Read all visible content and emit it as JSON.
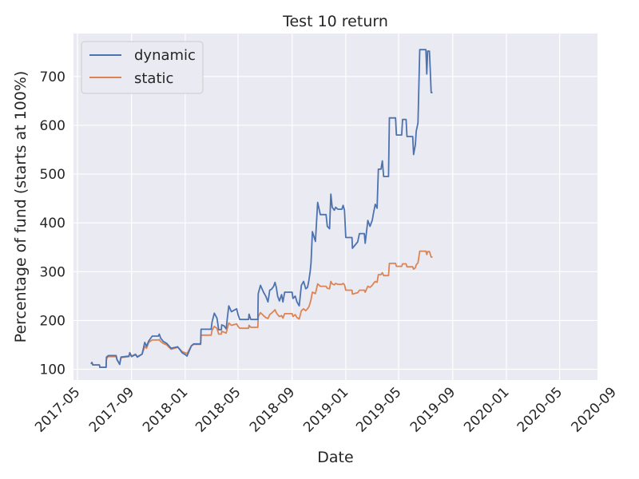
{
  "chart_data": {
    "type": "line",
    "title": "Test 10 return",
    "xlabel": "Date",
    "ylabel": "Percentage of fund (starts at 100%)",
    "xlim": [
      "2017-04-22",
      "2020-07-26"
    ],
    "ylim": [
      78,
      788
    ],
    "yticks": [
      100,
      200,
      300,
      400,
      500,
      600,
      700
    ],
    "xticks": [
      "2017-05",
      "2017-09",
      "2018-01",
      "2018-05",
      "2018-09",
      "2019-01",
      "2019-05",
      "2019-09",
      "2020-01",
      "2020-05",
      "2020-09"
    ],
    "xticks_dates": [
      "2017-05-01",
      "2017-09-01",
      "2018-01-01",
      "2018-05-01",
      "2018-09-01",
      "2019-01-01",
      "2019-05-01",
      "2019-09-01",
      "2020-01-01",
      "2020-05-01",
      "2020-09-01"
    ],
    "grid": true,
    "legend": "top-left",
    "colors": {
      "background": "#eaeaf2",
      "grid": "#ffffff",
      "dynamic": "#4c72b0",
      "static": "#dd8452"
    },
    "series": [
      {
        "name": "dynamic",
        "points": [
          [
            "2017-06-01",
            111
          ],
          [
            "2017-06-03",
            114
          ],
          [
            "2017-06-05",
            109
          ],
          [
            "2017-06-20",
            109
          ],
          [
            "2017-06-21",
            104
          ],
          [
            "2017-07-05",
            104
          ],
          [
            "2017-07-06",
            125
          ],
          [
            "2017-07-10",
            128
          ],
          [
            "2017-07-28",
            128
          ],
          [
            "2017-07-30",
            120
          ],
          [
            "2017-08-05",
            110
          ],
          [
            "2017-08-08",
            125
          ],
          [
            "2017-08-26",
            127
          ],
          [
            "2017-08-28",
            134
          ],
          [
            "2017-09-01",
            126
          ],
          [
            "2017-09-10",
            130
          ],
          [
            "2017-09-14",
            125
          ],
          [
            "2017-09-25",
            131
          ],
          [
            "2017-10-01",
            155
          ],
          [
            "2017-10-05",
            147
          ],
          [
            "2017-10-10",
            158
          ],
          [
            "2017-10-18",
            168
          ],
          [
            "2017-11-01",
            168
          ],
          [
            "2017-11-03",
            172
          ],
          [
            "2017-11-06",
            164
          ],
          [
            "2017-11-12",
            157
          ],
          [
            "2017-11-20",
            153
          ],
          [
            "2017-11-25",
            148
          ],
          [
            "2017-11-30",
            143
          ],
          [
            "2017-12-15",
            146
          ],
          [
            "2017-12-20",
            140
          ],
          [
            "2017-12-25",
            134
          ],
          [
            "2018-01-01",
            130
          ],
          [
            "2018-01-05",
            127
          ],
          [
            "2018-01-15",
            148
          ],
          [
            "2018-01-20",
            152
          ],
          [
            "2018-02-05",
            152
          ],
          [
            "2018-02-06",
            182
          ],
          [
            "2018-03-01",
            182
          ],
          [
            "2018-03-03",
            197
          ],
          [
            "2018-03-08",
            215
          ],
          [
            "2018-03-14",
            205
          ],
          [
            "2018-03-18",
            181
          ],
          [
            "2018-03-24",
            181
          ],
          [
            "2018-03-25",
            191
          ],
          [
            "2018-03-30",
            189
          ],
          [
            "2018-04-04",
            183
          ],
          [
            "2018-04-10",
            230
          ],
          [
            "2018-04-16",
            218
          ],
          [
            "2018-04-28",
            224
          ],
          [
            "2018-05-01",
            212
          ],
          [
            "2018-05-05",
            202
          ],
          [
            "2018-05-25",
            202
          ],
          [
            "2018-05-26",
            213
          ],
          [
            "2018-05-30",
            202
          ],
          [
            "2018-06-15",
            202
          ],
          [
            "2018-06-16",
            255
          ],
          [
            "2018-06-21",
            272
          ],
          [
            "2018-06-28",
            258
          ],
          [
            "2018-07-03",
            250
          ],
          [
            "2018-07-08",
            238
          ],
          [
            "2018-07-12",
            262
          ],
          [
            "2018-07-16",
            264
          ],
          [
            "2018-07-21",
            270
          ],
          [
            "2018-07-24",
            278
          ],
          [
            "2018-07-27",
            268
          ],
          [
            "2018-07-30",
            250
          ],
          [
            "2018-08-03",
            240
          ],
          [
            "2018-08-08",
            253
          ],
          [
            "2018-08-11",
            238
          ],
          [
            "2018-08-15",
            258
          ],
          [
            "2018-09-01",
            258
          ],
          [
            "2018-09-03",
            245
          ],
          [
            "2018-09-08",
            250
          ],
          [
            "2018-09-12",
            238
          ],
          [
            "2018-09-17",
            230
          ],
          [
            "2018-09-22",
            272
          ],
          [
            "2018-09-27",
            280
          ],
          [
            "2018-10-02",
            265
          ],
          [
            "2018-10-06",
            268
          ],
          [
            "2018-10-09",
            282
          ],
          [
            "2018-10-12",
            300
          ],
          [
            "2018-10-14",
            318
          ],
          [
            "2018-10-17",
            382
          ],
          [
            "2018-10-24",
            362
          ],
          [
            "2018-10-29",
            442
          ],
          [
            "2018-11-04",
            417
          ],
          [
            "2018-11-17",
            417
          ],
          [
            "2018-11-20",
            393
          ],
          [
            "2018-11-25",
            388
          ],
          [
            "2018-11-28",
            459
          ],
          [
            "2018-12-01",
            432
          ],
          [
            "2018-12-06",
            426
          ],
          [
            "2018-12-09",
            432
          ],
          [
            "2018-12-14",
            428
          ],
          [
            "2018-12-23",
            428
          ],
          [
            "2018-12-26",
            436
          ],
          [
            "2018-12-29",
            426
          ],
          [
            "2019-01-01",
            370
          ],
          [
            "2019-01-15",
            370
          ],
          [
            "2019-01-16",
            348
          ],
          [
            "2019-01-28",
            361
          ],
          [
            "2019-02-01",
            378
          ],
          [
            "2019-02-12",
            378
          ],
          [
            "2019-02-14",
            358
          ],
          [
            "2019-02-20",
            405
          ],
          [
            "2019-02-25",
            393
          ],
          [
            "2019-03-02",
            405
          ],
          [
            "2019-03-05",
            420
          ],
          [
            "2019-03-09",
            438
          ],
          [
            "2019-03-13",
            430
          ],
          [
            "2019-03-16",
            510
          ],
          [
            "2019-03-22",
            510
          ],
          [
            "2019-03-25",
            527
          ],
          [
            "2019-03-28",
            495
          ],
          [
            "2019-04-08",
            495
          ],
          [
            "2019-04-10",
            615
          ],
          [
            "2019-04-24",
            615
          ],
          [
            "2019-04-26",
            580
          ],
          [
            "2019-05-08",
            580
          ],
          [
            "2019-05-10",
            612
          ],
          [
            "2019-05-18",
            612
          ],
          [
            "2019-05-20",
            577
          ],
          [
            "2019-06-02",
            577
          ],
          [
            "2019-06-04",
            540
          ],
          [
            "2019-06-08",
            560
          ],
          [
            "2019-06-10",
            588
          ],
          [
            "2019-06-14",
            605
          ],
          [
            "2019-06-18",
            755
          ],
          [
            "2019-07-02",
            755
          ],
          [
            "2019-07-04",
            705
          ],
          [
            "2019-07-06",
            752
          ],
          [
            "2019-07-10",
            752
          ],
          [
            "2019-07-12",
            712
          ],
          [
            "2019-07-14",
            667
          ],
          [
            "2019-07-17",
            667
          ]
        ]
      },
      {
        "name": "static",
        "points": [
          [
            "2017-06-01",
            111
          ],
          [
            "2017-06-03",
            114
          ],
          [
            "2017-06-05",
            109
          ],
          [
            "2017-06-20",
            109
          ],
          [
            "2017-06-21",
            104
          ],
          [
            "2017-07-05",
            104
          ],
          [
            "2017-07-06",
            122
          ],
          [
            "2017-07-10",
            126
          ],
          [
            "2017-07-28",
            126
          ],
          [
            "2017-07-30",
            119
          ],
          [
            "2017-08-05",
            111
          ],
          [
            "2017-08-08",
            124
          ],
          [
            "2017-08-26",
            126
          ],
          [
            "2017-08-28",
            133
          ],
          [
            "2017-09-01",
            127
          ],
          [
            "2017-09-10",
            131
          ],
          [
            "2017-09-14",
            126
          ],
          [
            "2017-09-25",
            131
          ],
          [
            "2017-10-01",
            147
          ],
          [
            "2017-10-05",
            143
          ],
          [
            "2017-10-10",
            155
          ],
          [
            "2017-10-18",
            160
          ],
          [
            "2017-11-01",
            160
          ],
          [
            "2017-11-03",
            161
          ],
          [
            "2017-11-06",
            157
          ],
          [
            "2017-11-12",
            153
          ],
          [
            "2017-11-20",
            150
          ],
          [
            "2017-11-25",
            145
          ],
          [
            "2017-11-30",
            141
          ],
          [
            "2017-12-15",
            145
          ],
          [
            "2017-12-20",
            141
          ],
          [
            "2017-12-25",
            136
          ],
          [
            "2018-01-01",
            134
          ],
          [
            "2018-01-05",
            132
          ],
          [
            "2018-01-15",
            148
          ],
          [
            "2018-01-20",
            151
          ],
          [
            "2018-02-05",
            151
          ],
          [
            "2018-02-06",
            170
          ],
          [
            "2018-03-01",
            170
          ],
          [
            "2018-03-03",
            180
          ],
          [
            "2018-03-08",
            188
          ],
          [
            "2018-03-14",
            184
          ],
          [
            "2018-03-18",
            172
          ],
          [
            "2018-03-24",
            172
          ],
          [
            "2018-03-25",
            178
          ],
          [
            "2018-03-30",
            176
          ],
          [
            "2018-04-04",
            174
          ],
          [
            "2018-04-10",
            195
          ],
          [
            "2018-04-16",
            190
          ],
          [
            "2018-04-28",
            193
          ],
          [
            "2018-05-01",
            188
          ],
          [
            "2018-05-05",
            184
          ],
          [
            "2018-05-25",
            184
          ],
          [
            "2018-05-26",
            190
          ],
          [
            "2018-05-30",
            186
          ],
          [
            "2018-06-15",
            186
          ],
          [
            "2018-06-16",
            208
          ],
          [
            "2018-06-21",
            216
          ],
          [
            "2018-06-28",
            210
          ],
          [
            "2018-07-03",
            206
          ],
          [
            "2018-07-08",
            204
          ],
          [
            "2018-07-12",
            212
          ],
          [
            "2018-07-16",
            215
          ],
          [
            "2018-07-21",
            219
          ],
          [
            "2018-07-24",
            222
          ],
          [
            "2018-07-27",
            216
          ],
          [
            "2018-07-30",
            212
          ],
          [
            "2018-08-03",
            208
          ],
          [
            "2018-08-08",
            210
          ],
          [
            "2018-08-11",
            205
          ],
          [
            "2018-08-15",
            214
          ],
          [
            "2018-09-01",
            214
          ],
          [
            "2018-09-03",
            208
          ],
          [
            "2018-09-08",
            212
          ],
          [
            "2018-09-12",
            206
          ],
          [
            "2018-09-17",
            203
          ],
          [
            "2018-09-22",
            220
          ],
          [
            "2018-09-27",
            224
          ],
          [
            "2018-10-02",
            220
          ],
          [
            "2018-10-06",
            224
          ],
          [
            "2018-10-09",
            228
          ],
          [
            "2018-10-12",
            236
          ],
          [
            "2018-10-14",
            243
          ],
          [
            "2018-10-17",
            258
          ],
          [
            "2018-10-24",
            255
          ],
          [
            "2018-10-29",
            275
          ],
          [
            "2018-11-04",
            270
          ],
          [
            "2018-11-17",
            270
          ],
          [
            "2018-11-20",
            266
          ],
          [
            "2018-11-25",
            265
          ],
          [
            "2018-11-28",
            280
          ],
          [
            "2018-12-01",
            275
          ],
          [
            "2018-12-06",
            273
          ],
          [
            "2018-12-09",
            276
          ],
          [
            "2018-12-14",
            274
          ],
          [
            "2018-12-23",
            274
          ],
          [
            "2018-12-26",
            276
          ],
          [
            "2018-12-29",
            273
          ],
          [
            "2019-01-01",
            262
          ],
          [
            "2019-01-15",
            262
          ],
          [
            "2019-01-16",
            254
          ],
          [
            "2019-01-28",
            257
          ],
          [
            "2019-02-01",
            262
          ],
          [
            "2019-02-12",
            262
          ],
          [
            "2019-02-14",
            258
          ],
          [
            "2019-02-20",
            270
          ],
          [
            "2019-02-25",
            268
          ],
          [
            "2019-03-02",
            272
          ],
          [
            "2019-03-05",
            276
          ],
          [
            "2019-03-09",
            280
          ],
          [
            "2019-03-13",
            278
          ],
          [
            "2019-03-16",
            294
          ],
          [
            "2019-03-22",
            294
          ],
          [
            "2019-03-25",
            298
          ],
          [
            "2019-03-28",
            292
          ],
          [
            "2019-04-08",
            292
          ],
          [
            "2019-04-10",
            317
          ],
          [
            "2019-04-24",
            317
          ],
          [
            "2019-04-26",
            311
          ],
          [
            "2019-05-08",
            311
          ],
          [
            "2019-05-10",
            316
          ],
          [
            "2019-05-18",
            316
          ],
          [
            "2019-05-20",
            310
          ],
          [
            "2019-06-02",
            310
          ],
          [
            "2019-06-04",
            305
          ],
          [
            "2019-06-08",
            308
          ],
          [
            "2019-06-10",
            314
          ],
          [
            "2019-06-14",
            318
          ],
          [
            "2019-06-18",
            342
          ],
          [
            "2019-07-02",
            342
          ],
          [
            "2019-07-04",
            335
          ],
          [
            "2019-07-06",
            341
          ],
          [
            "2019-07-10",
            341
          ],
          [
            "2019-07-12",
            336
          ],
          [
            "2019-07-14",
            330
          ],
          [
            "2019-07-17",
            330
          ]
        ]
      }
    ]
  }
}
